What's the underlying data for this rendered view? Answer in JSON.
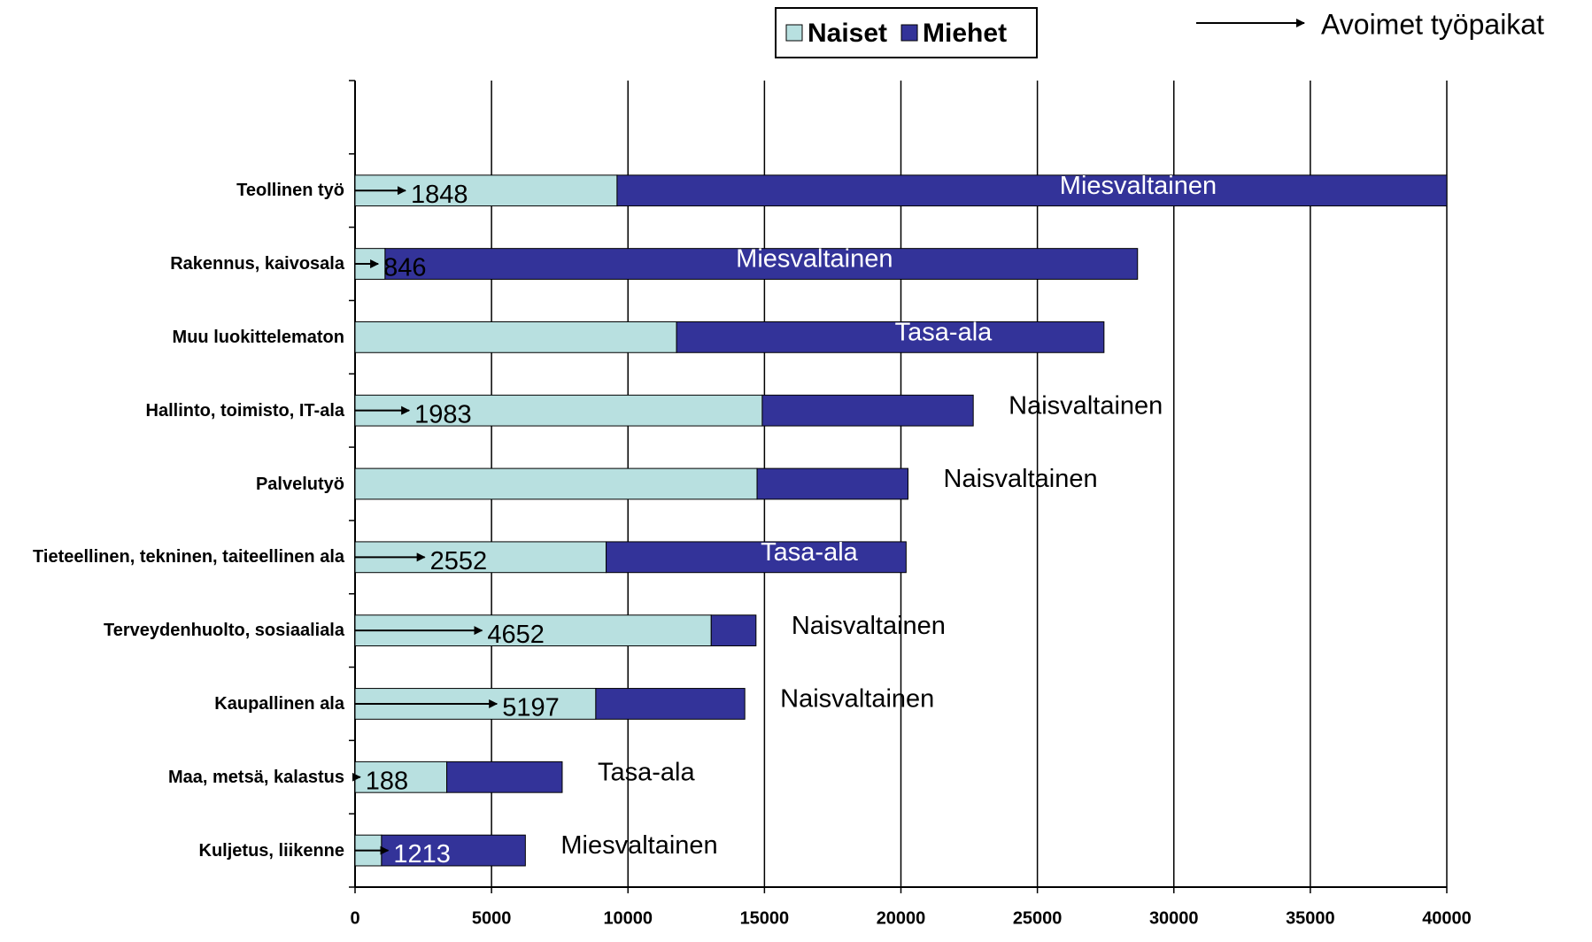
{
  "chart_data": {
    "type": "bar",
    "orientation": "horizontal",
    "stacked": true,
    "categories": [
      "Teollinen työ",
      "Rakennus, kaivosala",
      "Muu luokittelematon",
      "Hallinto, toimisto, IT-ala",
      "Palvelutyö",
      "Tieteellinen, tekninen, taiteellinen ala",
      "Terveydenhuolto, sosiaaliala",
      "Kaupallinen ala",
      "Maa, metsä, kalastus",
      "Kuljetus, liikenne"
    ],
    "series": [
      {
        "name": "Naiset",
        "color": "#b8e0e0",
        "values": [
          9600,
          1100,
          11780,
          14920,
          14730,
          9200,
          13050,
          8820,
          3360,
          970
        ]
      },
      {
        "name": "Miehet",
        "color": "#333399",
        "values": [
          30400,
          27570,
          15660,
          7730,
          5530,
          10990,
          1640,
          5460,
          4230,
          5270
        ]
      }
    ],
    "vacancies": {
      "name": "Avoimet työpaikat",
      "values": [
        1848,
        846,
        null,
        1983,
        null,
        2552,
        4652,
        5197,
        188,
        1213
      ]
    },
    "annotations": [
      "Miesvaltainen",
      "Miesvaltainen",
      "Tasa-ala",
      "Naisvaltainen",
      "Naisvaltainen",
      "Tasa-ala",
      "Naisvaltainen",
      "Naisvaltainen",
      "Tasa-ala",
      "Miesvaltainen"
    ],
    "xlim": [
      0,
      40000
    ],
    "xticks": [
      0,
      5000,
      10000,
      15000,
      20000,
      25000,
      30000,
      35000,
      40000
    ],
    "grid": true
  }
}
